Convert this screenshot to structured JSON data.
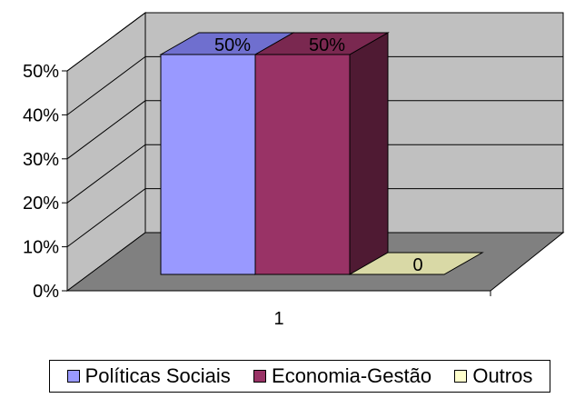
{
  "chart_data": {
    "type": "bar",
    "categories": [
      "1"
    ],
    "series": [
      {
        "name": "Políticas Sociais",
        "values": [
          0.5
        ],
        "label": "50%",
        "color": "#9999ff",
        "top_color": "#6f6fcf",
        "side_color": "#5a5aa8"
      },
      {
        "name": "Economia-Gestão",
        "values": [
          0.5
        ],
        "label": "50%",
        "color": "#993366",
        "top_color": "#7a2850",
        "side_color": "#4f1a33"
      },
      {
        "name": "Outros",
        "values": [
          0
        ],
        "label": "0",
        "color": "#ffffcc",
        "top_color": "#d9d9a6",
        "side_color": "#b8b88c"
      }
    ],
    "ylim": [
      0,
      0.5
    ],
    "yticks": [
      "0%",
      "10%",
      "20%",
      "30%",
      "40%",
      "50%"
    ],
    "wall_color": "#c0c0c0",
    "floor_color": "#808080",
    "legend_position": "bottom",
    "grid": true
  }
}
